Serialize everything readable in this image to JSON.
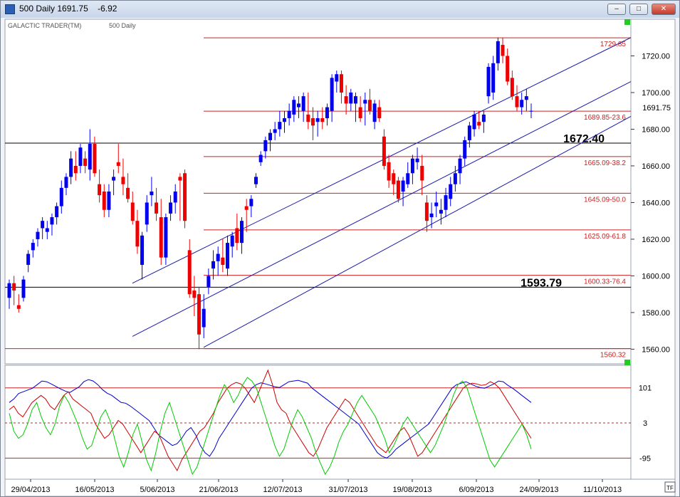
{
  "window": {
    "title": "500 Daily 1691.75    -6.92",
    "buttons": {
      "minimize": "–",
      "maximize": "□",
      "close": "✕"
    }
  },
  "header": {
    "product": "GALACTIC TRADER(TM)",
    "symbol": "500 Daily"
  },
  "chart_data": {
    "type": "candlestick",
    "title": "500 Daily",
    "last_price_label": "1691.75",
    "ylim": [
      1552,
      1740
    ],
    "y_ticks": [
      1560,
      1580,
      1600,
      1620,
      1640,
      1660,
      1680,
      1700,
      1720
    ],
    "x_tick_labels": [
      "29/04/2013",
      "16/05/2013",
      "5/06/2013",
      "21/06/2013",
      "12/07/2013",
      "31/07/2013",
      "19/08/2013",
      "6/09/2013",
      "24/09/2013",
      "11/10/2013"
    ],
    "fib_levels": [
      {
        "value": 1729.85,
        "label": "1729.85"
      },
      {
        "value": 1689.85,
        "label": "1689.85-23.6"
      },
      {
        "value": 1665.09,
        "label": "1665.09-38.2"
      },
      {
        "value": 1645.09,
        "label": "1645.09-50.0"
      },
      {
        "value": 1625.09,
        "label": "1625.09-61.8"
      },
      {
        "value": 1600.33,
        "label": "1600.33-76.4"
      },
      {
        "value": 1560.32,
        "label": "1560.32"
      }
    ],
    "horizontal_lines": [
      {
        "value": 1672.4,
        "label": "1672.40"
      },
      {
        "value": 1593.79,
        "label": "1593.79"
      }
    ],
    "candles": [
      [
        1588,
        1598,
        1582,
        1596
      ],
      [
        1596,
        1600,
        1584,
        1592
      ],
      [
        1584,
        1590,
        1580,
        1582
      ],
      [
        1588,
        1600,
        1586,
        1598
      ],
      [
        1606,
        1614,
        1602,
        1612
      ],
      [
        1614,
        1620,
        1610,
        1618
      ],
      [
        1620,
        1626,
        1616,
        1624
      ],
      [
        1626,
        1632,
        1620,
        1630
      ],
      [
        1624,
        1630,
        1620,
        1626
      ],
      [
        1628,
        1634,
        1622,
        1632
      ],
      [
        1632,
        1640,
        1628,
        1638
      ],
      [
        1638,
        1652,
        1634,
        1648
      ],
      [
        1648,
        1656,
        1644,
        1654
      ],
      [
        1654,
        1668,
        1650,
        1664
      ],
      [
        1660,
        1668,
        1652,
        1656
      ],
      [
        1660,
        1672,
        1656,
        1670
      ],
      [
        1664,
        1668,
        1656,
        1660
      ],
      [
        1658,
        1680,
        1652,
        1672
      ],
      [
        1672,
        1676,
        1654,
        1656
      ],
      [
        1650,
        1658,
        1640,
        1644
      ],
      [
        1646,
        1650,
        1632,
        1636
      ],
      [
        1636,
        1650,
        1632,
        1646
      ],
      [
        1652,
        1658,
        1644,
        1654
      ],
      [
        1662,
        1672,
        1656,
        1660
      ],
      [
        1654,
        1664,
        1644,
        1650
      ],
      [
        1648,
        1656,
        1640,
        1642
      ],
      [
        1640,
        1646,
        1628,
        1630
      ],
      [
        1630,
        1636,
        1612,
        1616
      ],
      [
        1606,
        1624,
        1598,
        1622
      ],
      [
        1628,
        1644,
        1624,
        1640
      ],
      [
        1644,
        1654,
        1638,
        1646
      ],
      [
        1640,
        1648,
        1630,
        1634
      ],
      [
        1632,
        1642,
        1606,
        1610
      ],
      [
        1610,
        1634,
        1606,
        1632
      ],
      [
        1634,
        1644,
        1630,
        1640
      ],
      [
        1640,
        1650,
        1634,
        1646
      ],
      [
        1654,
        1656,
        1630,
        1652
      ],
      [
        1656,
        1658,
        1626,
        1630
      ],
      [
        1614,
        1620,
        1588,
        1590
      ],
      [
        1592,
        1600,
        1578,
        1588
      ],
      [
        1590,
        1594,
        1560,
        1568
      ],
      [
        1572,
        1590,
        1566,
        1582
      ],
      [
        1594,
        1604,
        1590,
        1600
      ],
      [
        1604,
        1614,
        1598,
        1608
      ],
      [
        1608,
        1616,
        1600,
        1612
      ],
      [
        1610,
        1620,
        1602,
        1606
      ],
      [
        1604,
        1622,
        1600,
        1618
      ],
      [
        1616,
        1624,
        1610,
        1622
      ],
      [
        1626,
        1634,
        1614,
        1618
      ],
      [
        1618,
        1632,
        1612,
        1630
      ],
      [
        1638,
        1642,
        1624,
        1636
      ],
      [
        1638,
        1644,
        1632,
        1642
      ],
      [
        1650,
        1656,
        1648,
        1654
      ],
      [
        1662,
        1668,
        1660,
        1666
      ],
      [
        1668,
        1676,
        1664,
        1674
      ],
      [
        1674,
        1680,
        1668,
        1678
      ],
      [
        1678,
        1684,
        1674,
        1680
      ],
      [
        1680,
        1690,
        1676,
        1684
      ],
      [
        1684,
        1690,
        1678,
        1686
      ],
      [
        1686,
        1694,
        1682,
        1690
      ],
      [
        1688,
        1698,
        1684,
        1696
      ],
      [
        1692,
        1698,
        1686,
        1694
      ],
      [
        1690,
        1700,
        1684,
        1698
      ],
      [
        1688,
        1700,
        1680,
        1684
      ],
      [
        1686,
        1692,
        1674,
        1682
      ],
      [
        1684,
        1690,
        1676,
        1686
      ],
      [
        1686,
        1692,
        1680,
        1684
      ],
      [
        1686,
        1694,
        1682,
        1692
      ],
      [
        1690,
        1710,
        1684,
        1708
      ],
      [
        1706,
        1712,
        1700,
        1710
      ],
      [
        1710,
        1712,
        1694,
        1700
      ],
      [
        1698,
        1704,
        1688,
        1694
      ],
      [
        1694,
        1702,
        1690,
        1700
      ],
      [
        1694,
        1700,
        1684,
        1698
      ],
      [
        1692,
        1698,
        1684,
        1686
      ],
      [
        1694,
        1700,
        1682,
        1696
      ],
      [
        1696,
        1702,
        1688,
        1690
      ],
      [
        1684,
        1696,
        1680,
        1694
      ],
      [
        1692,
        1696,
        1684,
        1686
      ],
      [
        1676,
        1680,
        1658,
        1660
      ],
      [
        1662,
        1666,
        1648,
        1652
      ],
      [
        1656,
        1658,
        1644,
        1650
      ],
      [
        1652,
        1654,
        1640,
        1642
      ],
      [
        1646,
        1654,
        1638,
        1652
      ],
      [
        1650,
        1662,
        1648,
        1656
      ],
      [
        1656,
        1666,
        1650,
        1664
      ],
      [
        1662,
        1670,
        1658,
        1664
      ],
      [
        1660,
        1666,
        1644,
        1652
      ],
      [
        1640,
        1644,
        1624,
        1630
      ],
      [
        1632,
        1640,
        1626,
        1634
      ],
      [
        1638,
        1646,
        1632,
        1640
      ],
      [
        1634,
        1642,
        1628,
        1636
      ],
      [
        1636,
        1648,
        1632,
        1644
      ],
      [
        1642,
        1654,
        1638,
        1650
      ],
      [
        1650,
        1660,
        1646,
        1656
      ],
      [
        1656,
        1666,
        1650,
        1664
      ],
      [
        1664,
        1676,
        1660,
        1674
      ],
      [
        1674,
        1684,
        1670,
        1682
      ],
      [
        1680,
        1690,
        1676,
        1688
      ],
      [
        1684,
        1690,
        1680,
        1682
      ],
      [
        1684,
        1690,
        1678,
        1688
      ],
      [
        1698,
        1716,
        1694,
        1714
      ],
      [
        1700,
        1720,
        1696,
        1716
      ],
      [
        1716,
        1730,
        1712,
        1728
      ],
      [
        1726,
        1730,
        1716,
        1720
      ],
      [
        1720,
        1724,
        1704,
        1706
      ],
      [
        1708,
        1712,
        1696,
        1698
      ],
      [
        1698,
        1704,
        1690,
        1692
      ],
      [
        1692,
        1700,
        1688,
        1696
      ],
      [
        1696,
        1702,
        1690,
        1698
      ],
      [
        1690,
        1694,
        1686,
        1690
      ]
    ],
    "channel_lines": [
      {
        "x0": 185,
        "y0": 1596,
        "x1": 885,
        "y1": 1730
      },
      {
        "x0": 185,
        "y0": 1567,
        "x1": 885,
        "y1": 1706
      },
      {
        "x0": 285,
        "y0": 1561,
        "x1": 885,
        "y1": 1687
      }
    ],
    "oscillator": {
      "y_ticks": [
        101,
        3,
        -95
      ],
      "ylim": [
        -150,
        160
      ],
      "series": [
        {
          "color": "#0000cc",
          "values": [
            60,
            70,
            85,
            90,
            95,
            100,
            110,
            120,
            118,
            112,
            105,
            98,
            92,
            88,
            96,
            104,
            118,
            124,
            120,
            110,
            96,
            86,
            80,
            70,
            60,
            58,
            50,
            40,
            30,
            20,
            10,
            -10,
            -30,
            -40,
            -50,
            -60,
            -55,
            -40,
            -20,
            -10,
            -30,
            -60,
            -80,
            -90,
            -70,
            -40,
            -20,
            0,
            20,
            40,
            60,
            80,
            100,
            110,
            115,
            112,
            108,
            104,
            102,
            110,
            118,
            120,
            122,
            118,
            114,
            100,
            90,
            80,
            70,
            60,
            50,
            40,
            30,
            20,
            10,
            0,
            -20,
            -40,
            -60,
            -80,
            -90,
            -95,
            -85,
            -70,
            -60,
            -50,
            -40,
            -30,
            -20,
            -10,
            0,
            20,
            40,
            60,
            80,
            100,
            110,
            114,
            118,
            112,
            106,
            102,
            100,
            106,
            112,
            120,
            118,
            108,
            100,
            90,
            80,
            70,
            60
          ]
        },
        {
          "color": "#cc0000",
          "values": [
            40,
            50,
            30,
            20,
            40,
            60,
            70,
            80,
            70,
            50,
            40,
            60,
            80,
            90,
            70,
            60,
            50,
            40,
            30,
            0,
            -20,
            -40,
            -30,
            -10,
            10,
            0,
            -20,
            -40,
            -60,
            -80,
            -60,
            -40,
            -20,
            -30,
            -60,
            -90,
            -110,
            -130,
            -100,
            -80,
            -60,
            -40,
            -20,
            -10,
            10,
            30,
            60,
            80,
            100,
            110,
            116,
            112,
            100,
            80,
            60,
            90,
            120,
            150,
            110,
            60,
            40,
            30,
            0,
            -20,
            -40,
            -60,
            -80,
            -90,
            -70,
            -40,
            -10,
            10,
            30,
            50,
            70,
            60,
            40,
            20,
            0,
            -20,
            -40,
            -60,
            -70,
            -80,
            -60,
            -40,
            -20,
            -10,
            -30,
            -60,
            -90,
            -80,
            -60,
            -40,
            -20,
            0,
            20,
            40,
            60,
            80,
            100,
            110,
            114,
            112,
            108,
            110,
            118,
            112,
            100,
            80,
            60,
            40,
            20,
            0,
            -20,
            -40
          ]
        },
        {
          "color": "#00cc00",
          "values": [
            30,
            -20,
            -40,
            -30,
            0,
            40,
            60,
            20,
            -10,
            -30,
            0,
            50,
            80,
            60,
            30,
            0,
            -40,
            -70,
            -60,
            -20,
            20,
            40,
            10,
            -40,
            -90,
            -120,
            -80,
            -30,
            0,
            -50,
            -100,
            -130,
            -80,
            -20,
            30,
            60,
            20,
            -20,
            -60,
            -100,
            -140,
            -120,
            -80,
            -40,
            0,
            40,
            80,
            110,
            90,
            60,
            80,
            110,
            130,
            120,
            100,
            60,
            20,
            -20,
            -60,
            -90,
            -70,
            -30,
            10,
            40,
            20,
            -10,
            -40,
            -80,
            -110,
            -140,
            -120,
            -90,
            -50,
            -20,
            0,
            30,
            60,
            80,
            60,
            40,
            20,
            -10,
            -40,
            -80,
            -60,
            -30,
            0,
            20,
            0,
            -20,
            -40,
            -60,
            -80,
            -60,
            -30,
            0,
            40,
            80,
            110,
            120,
            100,
            60,
            20,
            -20,
            -60,
            -100,
            -120,
            -100,
            -80,
            -60,
            -40,
            -20,
            0,
            -30,
            -70
          ]
        }
      ]
    }
  },
  "footer": {
    "tf_button": "TF"
  }
}
